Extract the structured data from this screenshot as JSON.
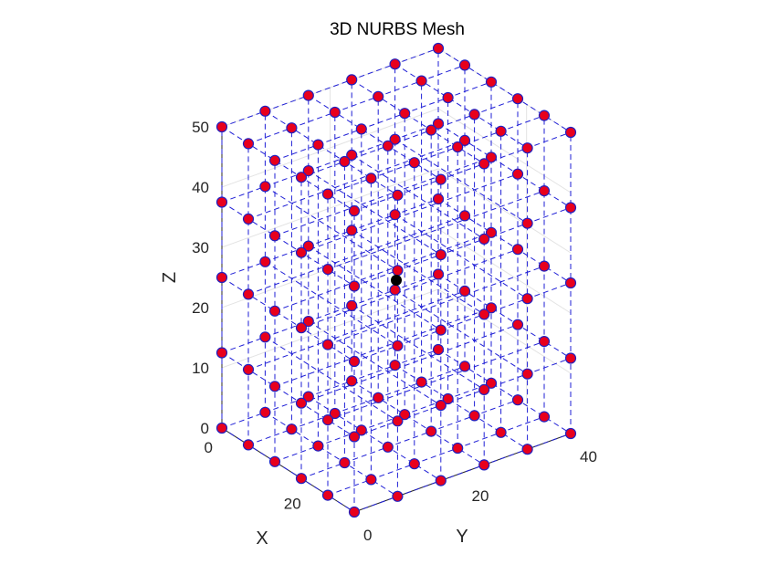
{
  "chart_data": {
    "type": "scatter",
    "title": "3D NURBS Mesh",
    "xlabel": "X",
    "ylabel": "Y",
    "zlabel": "Z",
    "xlim": [
      0,
      30
    ],
    "ylim": [
      0,
      40
    ],
    "zlim": [
      0,
      50
    ],
    "x_ticks": [
      "0",
      "20"
    ],
    "y_ticks": [
      "0",
      "20",
      "40"
    ],
    "z_ticks": [
      "0",
      "10",
      "20",
      "30",
      "40",
      "50"
    ],
    "grid": true,
    "control_point_color": "#e8001c",
    "control_point_edge": "#2020c0",
    "grid_line_color": "#1f1fd6",
    "highlight_color": "#000000",
    "grid_levels": {
      "x": [
        0,
        6,
        12,
        18,
        24,
        30
      ],
      "y": [
        0,
        8,
        16,
        24,
        32,
        40
      ],
      "z": [
        0,
        12.5,
        25,
        37.5,
        50
      ]
    },
    "highlighted_point": {
      "x": 15,
      "y": 20,
      "z": 25
    }
  },
  "labels": {
    "title": "3D NURBS Mesh",
    "xlabel": "X",
    "ylabel": "Y",
    "zlabel": "Z"
  }
}
